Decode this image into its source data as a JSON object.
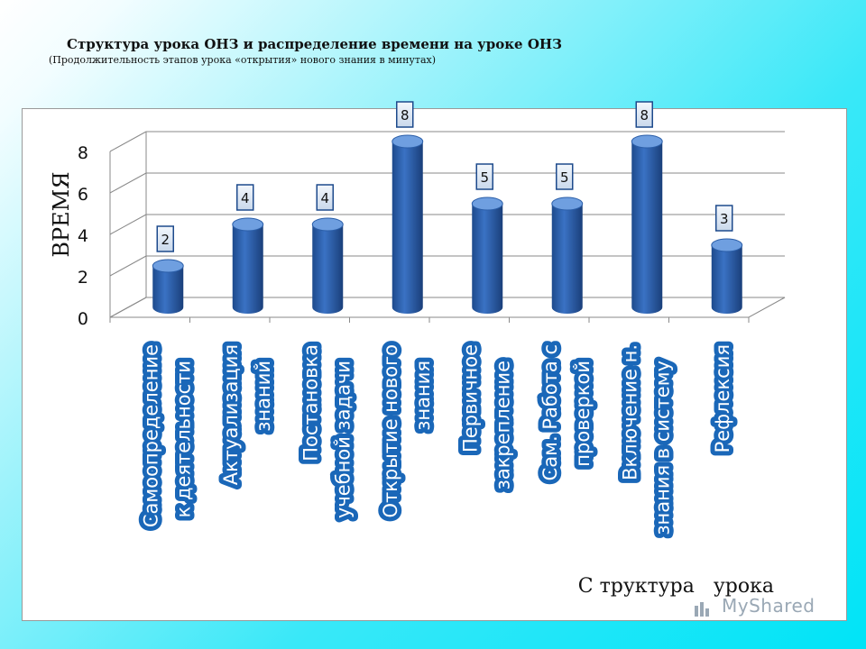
{
  "header": {
    "title": "Структура урока ОНЗ и распределение времени на уроке ОНЗ",
    "subtitle": "(Продолжительность этапов урока «открытия» нового знания в минутах)"
  },
  "chart_data": {
    "type": "bar",
    "title": "Структура урока ОНЗ и распределение времени на уроке ОНЗ",
    "subtitle": "(Продолжительность этапов урока «открытия» нового знания в минутах)",
    "ylabel": "ВРЕМЯ",
    "xlabel": "С труктура   урока",
    "ylim": [
      0,
      8
    ],
    "yticks": [
      0,
      2,
      4,
      6,
      8
    ],
    "grid": true,
    "categories": [
      [
        "Самоопределение",
        "к деятельности"
      ],
      [
        "Актуализация",
        "знаний"
      ],
      [
        "Постановка",
        "учебной задачи"
      ],
      [
        "Открытие нового",
        "знания"
      ],
      [
        "Первичное",
        "закрепление"
      ],
      [
        "Сам. Работа с",
        "проверкой"
      ],
      [
        "Включение н.",
        "знания в систему"
      ],
      [
        "Рефлексия"
      ]
    ],
    "values": [
      2,
      4,
      4,
      8,
      5,
      5,
      8,
      3
    ],
    "data_labels": [
      "2",
      "4",
      "4",
      "8",
      "5",
      "5",
      "8",
      "3"
    ],
    "colors": {
      "bar_dark": "#1d4a8c",
      "bar_mid": "#3a72c4",
      "bar_light": "#6f9fe0",
      "label_text": "#ffffff",
      "grid": "#8a8a8a"
    }
  },
  "watermark": {
    "text": "MyShared"
  }
}
